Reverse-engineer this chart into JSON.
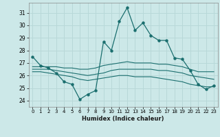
{
  "xlabel": "Humidex (Indice chaleur)",
  "background_color": "#cce8e8",
  "grid_color": "#b8d8d8",
  "line_color": "#1a6e6e",
  "xlim": [
    -0.5,
    23.5
  ],
  "ylim": [
    23.5,
    31.8
  ],
  "yticks": [
    24,
    25,
    26,
    27,
    28,
    29,
    30,
    31
  ],
  "xticks": [
    0,
    1,
    2,
    3,
    4,
    5,
    6,
    7,
    8,
    9,
    10,
    11,
    12,
    13,
    14,
    15,
    16,
    17,
    18,
    19,
    20,
    21,
    22,
    23
  ],
  "lines": [
    {
      "x": [
        0,
        1,
        2,
        3,
        4,
        5,
        6,
        7,
        8,
        9,
        10,
        11,
        12,
        13,
        14,
        15,
        16,
        17,
        18,
        19,
        20,
        21,
        22,
        23
      ],
      "y": [
        27.5,
        26.8,
        26.6,
        26.2,
        25.5,
        25.3,
        24.1,
        24.5,
        24.8,
        28.7,
        28.0,
        30.3,
        31.4,
        29.6,
        30.2,
        29.2,
        28.8,
        28.8,
        27.4,
        27.3,
        26.4,
        25.3,
        24.9,
        25.2
      ],
      "marker": true
    },
    {
      "x": [
        0,
        1,
        2,
        3,
        4,
        5,
        6,
        7,
        8,
        9,
        10,
        11,
        12,
        13,
        14,
        15,
        16,
        17,
        18,
        19,
        20,
        21,
        22,
        23
      ],
      "y": [
        26.7,
        26.7,
        26.7,
        26.7,
        26.6,
        26.6,
        26.5,
        26.5,
        26.6,
        26.8,
        26.9,
        27.0,
        27.1,
        27.0,
        27.0,
        27.0,
        26.9,
        26.9,
        26.8,
        26.7,
        26.5,
        26.3,
        26.3,
        26.3
      ],
      "marker": false
    },
    {
      "x": [
        0,
        1,
        2,
        3,
        4,
        5,
        6,
        7,
        8,
        9,
        10,
        11,
        12,
        13,
        14,
        15,
        16,
        17,
        18,
        19,
        20,
        21,
        22,
        23
      ],
      "y": [
        26.5,
        26.5,
        26.5,
        26.4,
        26.3,
        26.2,
        26.1,
        26.0,
        26.1,
        26.2,
        26.4,
        26.5,
        26.5,
        26.5,
        26.5,
        26.5,
        26.4,
        26.4,
        26.3,
        26.2,
        26.0,
        25.9,
        25.8,
        25.7
      ],
      "marker": false
    },
    {
      "x": [
        0,
        1,
        2,
        3,
        4,
        5,
        6,
        7,
        8,
        9,
        10,
        11,
        12,
        13,
        14,
        15,
        16,
        17,
        18,
        19,
        20,
        21,
        22,
        23
      ],
      "y": [
        26.3,
        26.3,
        26.2,
        26.1,
        26.0,
        25.9,
        25.7,
        25.6,
        25.7,
        25.8,
        25.9,
        26.0,
        26.0,
        25.9,
        25.9,
        25.9,
        25.8,
        25.7,
        25.6,
        25.5,
        25.3,
        25.2,
        25.1,
        25.1
      ],
      "marker": false
    }
  ]
}
